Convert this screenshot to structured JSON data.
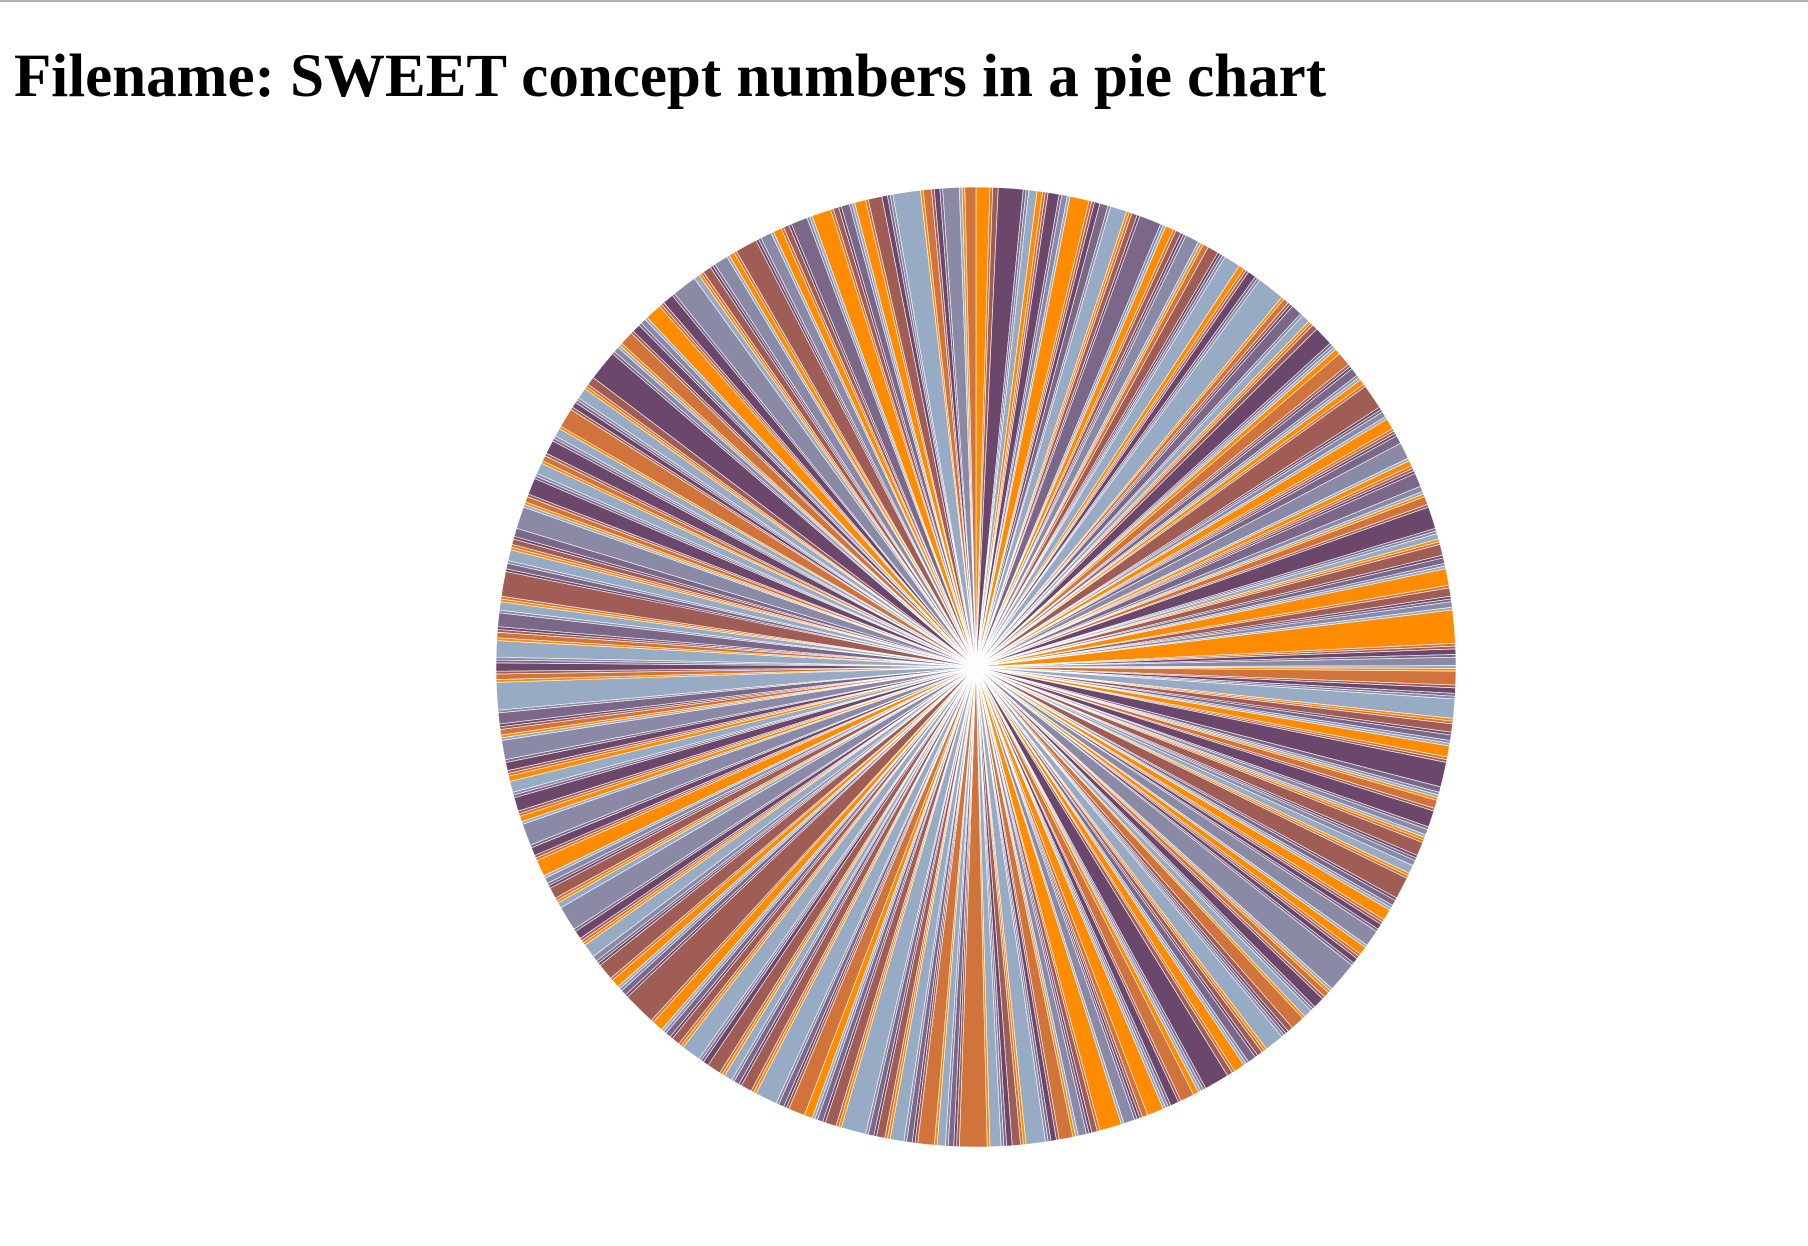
{
  "page": {
    "title": "Filename: SWEET concept numbers in a pie chart"
  },
  "chart_data": {
    "type": "pie",
    "title": "",
    "palette": [
      "#ff8c00",
      "#d0743c",
      "#a05d56",
      "#6b486b",
      "#7b6888",
      "#8a89a6",
      "#98abc5"
    ],
    "slice_separator_color": "#ffffff",
    "values": [
      5,
      1,
      2,
      9,
      1,
      1,
      3,
      2,
      1,
      1,
      4,
      1,
      2,
      1,
      7,
      1,
      1,
      2,
      3,
      1,
      6,
      1,
      1,
      2,
      1,
      8,
      1,
      1,
      3,
      1,
      2,
      1,
      1,
      5,
      1,
      1,
      2,
      4,
      1,
      1,
      1,
      6,
      2,
      1,
      1,
      3,
      1,
      1,
      10,
      1,
      2,
      1,
      1,
      4,
      1,
      3,
      1,
      1,
      2,
      7,
      1,
      1,
      1,
      2,
      5,
      1,
      1,
      3,
      1,
      1,
      2,
      1,
      9,
      1,
      1,
      2,
      1,
      4,
      1,
      1,
      1,
      3,
      6,
      1,
      2,
      1,
      1,
      1,
      5,
      2,
      1,
      1,
      3,
      1,
      8,
      1,
      1,
      2,
      1,
      1,
      4,
      1,
      2,
      1,
      1,
      6,
      1,
      3,
      1,
      1,
      2,
      1,
      12,
      1,
      1,
      2,
      1,
      3,
      1,
      1,
      5,
      1,
      2,
      1,
      1,
      7,
      1,
      1,
      3,
      1,
      2,
      1,
      1,
      4,
      1,
      1,
      9,
      2,
      1,
      1,
      1,
      3,
      1,
      6,
      1,
      2,
      1,
      1,
      1,
      5,
      1,
      1,
      2,
      3,
      1,
      1,
      8,
      1,
      2,
      1,
      1,
      4,
      1,
      1,
      2,
      1,
      6,
      1,
      3,
      1,
      1,
      2,
      1,
      11,
      1,
      1,
      2,
      1,
      4,
      1,
      1,
      3,
      1,
      5,
      2,
      1,
      1,
      1,
      7,
      1,
      1,
      2,
      1,
      3,
      1,
      1,
      4,
      1,
      2,
      9,
      1,
      1,
      1,
      2,
      5,
      1,
      3,
      1,
      1,
      1,
      6,
      2,
      1,
      1,
      1,
      4,
      1,
      8,
      1,
      2,
      1,
      1,
      3,
      1,
      1,
      5,
      1,
      2,
      1,
      1,
      7,
      1,
      1,
      3,
      2,
      1,
      1,
      4,
      1,
      10,
      1,
      1,
      2,
      1,
      3,
      1,
      6,
      1,
      1,
      2,
      1,
      5,
      1,
      1,
      3,
      1,
      2,
      1,
      9,
      1,
      1,
      4,
      1,
      2,
      1,
      1,
      3,
      6,
      1,
      1,
      2,
      1,
      8,
      1,
      1,
      4,
      1,
      2,
      1,
      3,
      1,
      1,
      5,
      2,
      1,
      1,
      7,
      1,
      1,
      3,
      1,
      2,
      1,
      1,
      4,
      1,
      12,
      1,
      2,
      1,
      1,
      3,
      1,
      6,
      1,
      1,
      2,
      5,
      1,
      1,
      1,
      3,
      1,
      9,
      2,
      1,
      1,
      4,
      1,
      1,
      2,
      1,
      6,
      1,
      1,
      3,
      1,
      8,
      1,
      2,
      1,
      1,
      5,
      1,
      1,
      4,
      2,
      1,
      1,
      3,
      1,
      7,
      1,
      1,
      2,
      1,
      1,
      4,
      1,
      10,
      1,
      2,
      1,
      3,
      1,
      1,
      6,
      1,
      2,
      1,
      1,
      5,
      1,
      3,
      1,
      1,
      9,
      1,
      2,
      1,
      4,
      1,
      1,
      2,
      1,
      3,
      8,
      1,
      1,
      2,
      1,
      6,
      1,
      1,
      4,
      1,
      2,
      1,
      5,
      1,
      1,
      3,
      1,
      7,
      1,
      2,
      1,
      1,
      4,
      1,
      1,
      3,
      11,
      1,
      2,
      1,
      1,
      5,
      1,
      3,
      1,
      2,
      1,
      6,
      1,
      1,
      4,
      1,
      9,
      2,
      1,
      1,
      3,
      1,
      1,
      5,
      1,
      2,
      1,
      8,
      1,
      1,
      4,
      1,
      3,
      1,
      2,
      1,
      6,
      1,
      1,
      7,
      1,
      2,
      1,
      3,
      1,
      1,
      4,
      1,
      5,
      2,
      1,
      1,
      10,
      1,
      3,
      1,
      2,
      1,
      6,
      1,
      1,
      4
    ]
  }
}
